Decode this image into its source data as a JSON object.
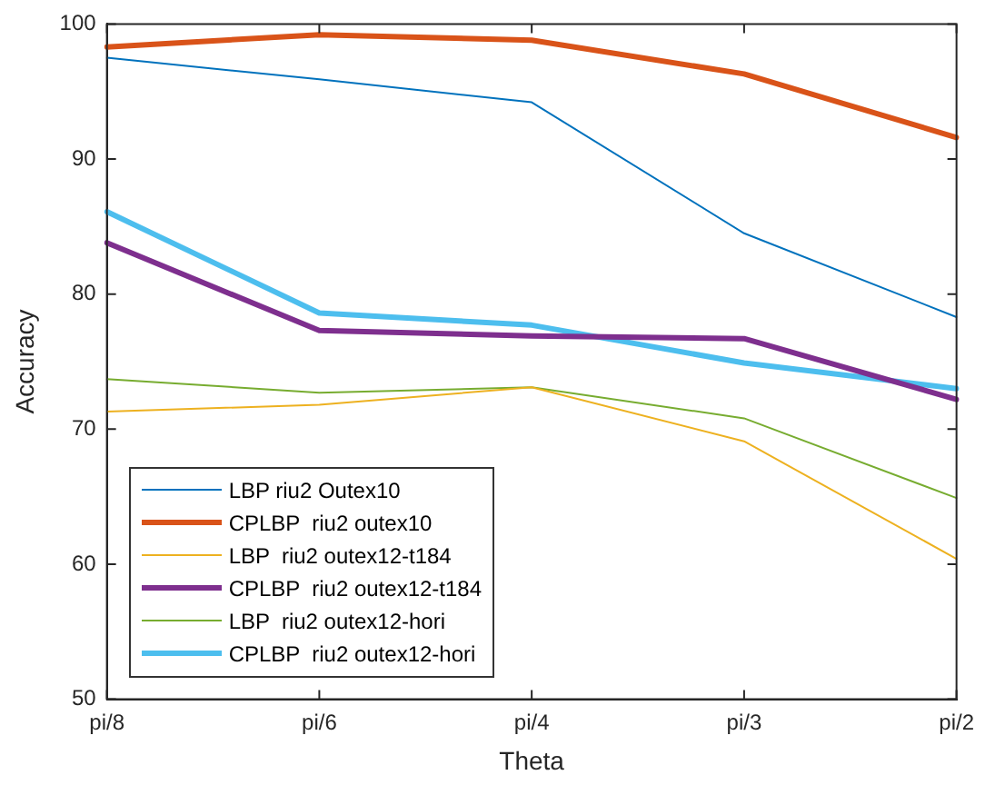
{
  "chart_data": {
    "type": "line",
    "xlabel": "Theta",
    "ylabel": "Accuracy",
    "categories": [
      "pi/8",
      "pi/6",
      "pi/4",
      "pi/3",
      "pi/2"
    ],
    "ylim": [
      50,
      100
    ],
    "yticks": [
      50,
      60,
      70,
      80,
      90,
      100
    ],
    "grid": false,
    "legend": "bottom left",
    "marker": "none",
    "line_style": "solid",
    "series": [
      {
        "name": "LBP riu2 Outex10",
        "color": "#0072bd",
        "values": [
          97.5,
          95.9,
          94.2,
          84.5,
          78.3
        ]
      },
      {
        "name": "CPLBP  riu2 outex10",
        "color": "#d95319",
        "values": [
          98.3,
          99.2,
          98.8,
          96.3,
          91.6
        ]
      },
      {
        "name": "LBP  riu2 outex12-t184",
        "color": "#edb120",
        "values": [
          71.3,
          71.8,
          73.1,
          69.1,
          60.4
        ]
      },
      {
        "name": "CPLBP  riu2 outex12-t184",
        "color": "#7e2f8e",
        "values": [
          83.8,
          77.3,
          76.9,
          76.7,
          72.2
        ]
      },
      {
        "name": "LBP  riu2 outex12-hori",
        "color": "#77ac30",
        "values": [
          73.7,
          72.7,
          73.1,
          70.8,
          64.9
        ]
      },
      {
        "name": "CPLBP  riu2 outex12-hori",
        "color": "#4dbeee",
        "values": [
          86.1,
          78.6,
          77.7,
          74.9,
          73.0
        ]
      }
    ]
  }
}
